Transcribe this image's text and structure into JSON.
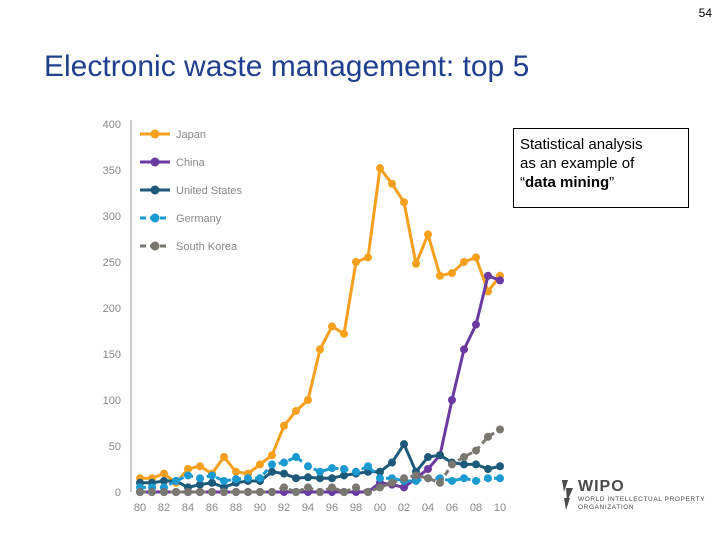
{
  "page": {
    "number": "54",
    "title": "Electronic waste management: top 5"
  },
  "callout": {
    "line1": "Statistical analysis",
    "line2": "as an example of",
    "line3_open": "“",
    "line3_bold": "data mining",
    "line3_close": "”"
  },
  "logo": {
    "word": "WIPO",
    "sub": "WORLD INTELLECTUAL PROPERTY ORGANIZATION"
  },
  "colors": {
    "japan": "#f7a01e",
    "china": "#6a3aa0",
    "united_states": "#1d5a7a",
    "germany": "#1a9ad0",
    "south_korea": "#7a7670",
    "axis": "#999999"
  },
  "chart_data": {
    "type": "line",
    "x_tick_labels": [
      "80",
      "82",
      "84",
      "86",
      "88",
      "90",
      "92",
      "94",
      "96",
      "98",
      "00",
      "02",
      "04",
      "06",
      "08",
      "10"
    ],
    "x": [
      1980,
      1981,
      1982,
      1983,
      1984,
      1985,
      1986,
      1987,
      1988,
      1989,
      1990,
      1991,
      1992,
      1993,
      1994,
      1995,
      1996,
      1997,
      1998,
      1999,
      2000,
      2001,
      2002,
      2003,
      2004,
      2005,
      2006,
      2007,
      2008,
      2009,
      2010
    ],
    "y_ticks": [
      0,
      50,
      100,
      150,
      200,
      250,
      300,
      350,
      400
    ],
    "ylim": [
      0,
      400
    ],
    "xlim": [
      1980,
      2010
    ],
    "legend_position": "top-left",
    "grid": false,
    "series": [
      {
        "name": "Japan",
        "key": "japan",
        "style": "solid",
        "values": [
          15,
          15,
          20,
          10,
          25,
          28,
          20,
          38,
          22,
          20,
          30,
          40,
          72,
          88,
          100,
          155,
          180,
          172,
          250,
          255,
          352,
          335,
          315,
          248,
          280,
          235,
          238,
          250,
          255,
          218,
          235
        ]
      },
      {
        "name": "China",
        "key": "china",
        "style": "solid",
        "values": [
          0,
          0,
          0,
          0,
          0,
          0,
          0,
          0,
          0,
          0,
          0,
          0,
          0,
          0,
          0,
          0,
          0,
          0,
          0,
          0,
          10,
          8,
          5,
          15,
          25,
          40,
          100,
          155,
          182,
          235,
          230
        ]
      },
      {
        "name": "United States",
        "key": "united_states",
        "style": "solid",
        "values": [
          10,
          10,
          12,
          12,
          5,
          8,
          10,
          5,
          10,
          12,
          12,
          22,
          20,
          15,
          16,
          15,
          15,
          18,
          20,
          22,
          22,
          32,
          52,
          22,
          38,
          40,
          32,
          30,
          30,
          25,
          28
        ]
      },
      {
        "name": "Germany",
        "key": "germany",
        "style": "dashed",
        "values": [
          5,
          5,
          5,
          12,
          18,
          15,
          18,
          12,
          14,
          15,
          15,
          30,
          32,
          38,
          28,
          22,
          26,
          25,
          22,
          28,
          15,
          15,
          12,
          12,
          15,
          15,
          12,
          15,
          12,
          15,
          15
        ]
      },
      {
        "name": "South Korea",
        "key": "south_korea",
        "style": "dashed",
        "values": [
          0,
          0,
          0,
          0,
          0,
          0,
          0,
          0,
          0,
          0,
          0,
          0,
          5,
          0,
          5,
          0,
          5,
          0,
          5,
          0,
          5,
          10,
          15,
          18,
          15,
          10,
          30,
          38,
          45,
          60,
          68
        ]
      }
    ]
  }
}
